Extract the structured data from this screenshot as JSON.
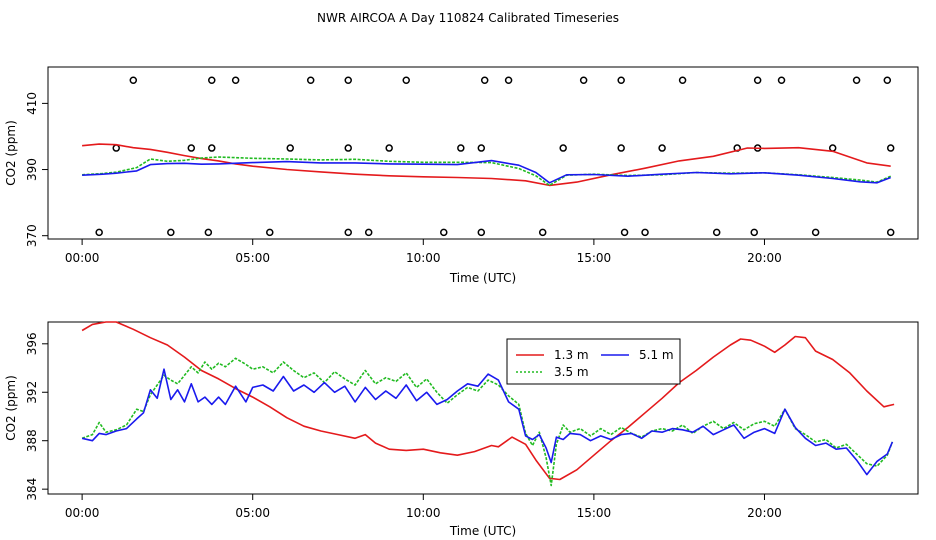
{
  "title": "NWR AIRCOA A  Day 110824  Calibrated Timeseries",
  "colors": {
    "s13": "#e41a1c",
    "s35": "#22bb22",
    "s51": "#1a1aee"
  },
  "chart_data": [
    {
      "type": "line",
      "xlabel": "Time (UTC)",
      "ylabel": "CO2 (ppm)",
      "xlim": [
        -1.0,
        24.5
      ],
      "ylim": [
        369,
        421
      ],
      "xticks": [
        0,
        5,
        10,
        15,
        20
      ],
      "xtick_labels": [
        "00:00",
        "05:00",
        "10:00",
        "15:00",
        "20:00"
      ],
      "yticks": [
        370,
        390,
        410
      ],
      "ytick_labels": [
        "370",
        "390",
        "410"
      ],
      "grid": false,
      "series": [
        {
          "name": "1.3 m",
          "color": "#e41a1c",
          "style": "solid",
          "x": [
            0,
            0.5,
            1,
            1.5,
            2,
            2.5,
            3,
            3.5,
            4,
            4.5,
            5,
            6,
            7,
            8,
            9,
            10,
            11,
            12,
            13,
            13.7,
            14.5,
            15.5,
            16.5,
            17.5,
            18.5,
            19.5,
            20,
            21,
            22,
            23,
            23.7
          ],
          "y": [
            397.2,
            397.7,
            397.5,
            396.6,
            396.1,
            395.2,
            394.2,
            393.3,
            392.6,
            391.7,
            391.0,
            390.0,
            389.3,
            388.6,
            388.1,
            387.8,
            387.6,
            387.3,
            386.6,
            385.2,
            386.2,
            388.4,
            390.4,
            392.6,
            394.0,
            396.5,
            396.4,
            396.6,
            395.5,
            392.0,
            391.0
          ]
        },
        {
          "name": "3.5 m",
          "color": "#22bb22",
          "style": "dotted",
          "x": [
            0,
            0.6,
            1,
            1.6,
            2,
            2.5,
            3,
            3.5,
            4,
            5,
            6,
            7,
            8,
            9,
            10,
            11,
            12,
            12.8,
            13.3,
            13.7,
            14.2,
            15,
            16,
            17,
            18,
            19,
            20,
            21,
            22,
            22.8,
            23.3,
            23.7
          ],
          "y": [
            388.4,
            388.8,
            389.2,
            390.6,
            393.2,
            392.5,
            392.8,
            393.5,
            393.8,
            393.4,
            393.2,
            392.9,
            393.1,
            392.5,
            392.2,
            392.2,
            392.1,
            390.3,
            388.1,
            385.2,
            388.3,
            388.6,
            388.2,
            388.4,
            389.1,
            388.9,
            389.0,
            388.4,
            387.6,
            386.8,
            386.2,
            388.0
          ]
        },
        {
          "name": "5.1 m",
          "color": "#1a1aee",
          "style": "solid",
          "x": [
            0,
            0.6,
            1,
            1.6,
            2,
            2.5,
            3,
            3.5,
            4,
            5,
            6,
            7,
            8,
            9,
            10,
            11,
            12,
            12.8,
            13.3,
            13.7,
            14.2,
            15,
            16,
            17,
            18,
            19,
            20,
            21,
            22,
            22.8,
            23.3,
            23.7
          ],
          "y": [
            388.3,
            388.6,
            388.9,
            389.6,
            391.5,
            391.8,
            391.9,
            391.6,
            391.7,
            392.1,
            392.4,
            392.0,
            392.0,
            391.7,
            391.6,
            391.5,
            392.7,
            391.3,
            389.1,
            386.0,
            388.4,
            388.5,
            388.0,
            388.6,
            389.1,
            388.7,
            389.0,
            388.3,
            387.3,
            386.3,
            386.0,
            387.6
          ]
        }
      ],
      "flags": {
        "top": {
          "y": 417,
          "x": [
            1.5,
            3.8,
            4.5,
            6.7,
            7.8,
            9.5,
            11.8,
            12.5,
            14.7,
            15.8,
            17.6,
            19.8,
            20.5,
            22.7,
            23.6
          ]
        },
        "middle": {
          "y": 396.5,
          "x": [
            1.0,
            3.2,
            3.8,
            6.1,
            7.8,
            9.0,
            11.1,
            11.7,
            14.1,
            15.8,
            17.0,
            19.2,
            19.8,
            22.0,
            23.7
          ]
        },
        "bottom": {
          "y": 371,
          "x": [
            0.5,
            2.6,
            3.7,
            5.5,
            7.8,
            8.4,
            10.6,
            11.7,
            13.5,
            15.9,
            16.5,
            18.6,
            19.7,
            21.5,
            23.7
          ]
        }
      }
    },
    {
      "type": "line",
      "xlabel": "Time (UTC)",
      "ylabel": "CO2 (ppm)",
      "xlim": [
        -1.0,
        24.5
      ],
      "ylim": [
        383.6,
        397.8
      ],
      "xticks": [
        0,
        5,
        10,
        15,
        20
      ],
      "xtick_labels": [
        "00:00",
        "05:00",
        "10:00",
        "15:00",
        "20:00"
      ],
      "yticks": [
        384,
        388,
        392,
        396
      ],
      "ytick_labels": [
        "384",
        "388",
        "392",
        "396"
      ],
      "grid": false,
      "legend": {
        "placement": "top-center",
        "entries": [
          "1.3 m",
          "5.1 m",
          "3.5 m"
        ]
      },
      "series": [
        {
          "name": "1.3 m",
          "color": "#e41a1c",
          "style": "solid",
          "x": [
            0,
            0.3,
            0.7,
            1.0,
            1.5,
            2.0,
            2.5,
            3.0,
            3.5,
            4.0,
            4.5,
            5.0,
            5.5,
            6.0,
            6.5,
            7.0,
            7.5,
            8.0,
            8.3,
            8.6,
            9.0,
            9.5,
            10.0,
            10.5,
            11.0,
            11.5,
            12.0,
            12.2,
            12.6,
            13.0,
            13.3,
            13.7,
            14.0,
            14.5,
            15.0,
            15.5,
            16.0,
            16.5,
            17.0,
            17.5,
            18.0,
            18.5,
            19.0,
            19.3,
            19.6,
            20.0,
            20.3,
            20.6,
            20.9,
            21.2,
            21.5,
            22.0,
            22.5,
            23.0,
            23.5,
            23.8
          ],
          "y": [
            397.1,
            397.6,
            397.8,
            397.8,
            397.2,
            396.5,
            395.9,
            394.9,
            393.8,
            393.1,
            392.3,
            391.6,
            390.8,
            389.9,
            389.2,
            388.8,
            388.5,
            388.2,
            388.5,
            387.8,
            387.3,
            387.2,
            387.3,
            387.0,
            386.8,
            387.1,
            387.6,
            387.5,
            388.3,
            387.7,
            386.4,
            384.9,
            384.8,
            385.6,
            386.8,
            388.0,
            389.1,
            390.3,
            391.5,
            392.8,
            393.8,
            394.9,
            395.9,
            396.4,
            396.3,
            395.8,
            395.3,
            395.9,
            396.6,
            396.5,
            395.4,
            394.7,
            393.6,
            392.1,
            390.8,
            391.0
          ]
        },
        {
          "name": "3.5 m",
          "color": "#22bb22",
          "style": "dotted",
          "x": [
            0,
            0.3,
            0.5,
            0.7,
            1.0,
            1.3,
            1.6,
            1.8,
            2.0,
            2.2,
            2.4,
            2.6,
            2.8,
            3.0,
            3.2,
            3.4,
            3.6,
            3.8,
            4.0,
            4.2,
            4.5,
            4.8,
            5.0,
            5.3,
            5.6,
            5.9,
            6.2,
            6.5,
            6.8,
            7.1,
            7.4,
            7.7,
            8.0,
            8.3,
            8.6,
            8.9,
            9.2,
            9.5,
            9.8,
            10.1,
            10.4,
            10.7,
            11.0,
            11.3,
            11.6,
            11.9,
            12.2,
            12.5,
            12.8,
            13.0,
            13.2,
            13.4,
            13.6,
            13.75,
            13.9,
            14.1,
            14.3,
            14.6,
            14.9,
            15.2,
            15.5,
            15.8,
            16.1,
            16.4,
            16.7,
            17.0,
            17.3,
            17.6,
            17.9,
            18.2,
            18.5,
            18.8,
            19.1,
            19.4,
            19.7,
            20.0,
            20.3,
            20.6,
            20.9,
            21.2,
            21.5,
            21.8,
            22.1,
            22.4,
            22.7,
            23.0,
            23.3,
            23.6,
            23.75
          ],
          "y": [
            388.2,
            388.5,
            389.5,
            388.7,
            388.9,
            389.3,
            390.6,
            390.4,
            391.8,
            392.6,
            393.4,
            393.0,
            392.7,
            393.4,
            394.1,
            393.6,
            394.5,
            393.9,
            394.4,
            394.1,
            394.8,
            394.3,
            393.9,
            394.1,
            393.6,
            394.5,
            393.8,
            393.2,
            393.6,
            392.8,
            393.7,
            393.1,
            392.6,
            393.8,
            392.7,
            393.2,
            392.9,
            393.6,
            392.4,
            393.1,
            392.0,
            391.1,
            391.8,
            392.4,
            392.1,
            393.0,
            392.6,
            391.7,
            391.0,
            388.6,
            387.6,
            388.7,
            386.6,
            384.3,
            387.7,
            389.3,
            388.7,
            389.0,
            388.4,
            389.0,
            388.5,
            389.1,
            388.6,
            388.3,
            388.8,
            389.0,
            388.8,
            389.3,
            388.6,
            389.2,
            389.6,
            389.0,
            389.5,
            388.9,
            389.4,
            389.6,
            389.2,
            390.6,
            389.0,
            388.5,
            387.9,
            388.1,
            387.4,
            387.7,
            386.9,
            386.1,
            385.9,
            386.8,
            387.9
          ]
        },
        {
          "name": "5.1 m",
          "color": "#1a1aee",
          "style": "solid",
          "x": [
            0,
            0.3,
            0.5,
            0.7,
            1.0,
            1.3,
            1.6,
            1.8,
            2.0,
            2.2,
            2.4,
            2.6,
            2.8,
            3.0,
            3.2,
            3.4,
            3.6,
            3.8,
            4.0,
            4.2,
            4.5,
            4.8,
            5.0,
            5.3,
            5.6,
            5.9,
            6.2,
            6.5,
            6.8,
            7.1,
            7.4,
            7.7,
            8.0,
            8.3,
            8.6,
            8.9,
            9.2,
            9.5,
            9.8,
            10.1,
            10.4,
            10.7,
            11.0,
            11.3,
            11.6,
            11.9,
            12.2,
            12.5,
            12.8,
            13.0,
            13.2,
            13.4,
            13.6,
            13.75,
            13.9,
            14.1,
            14.3,
            14.6,
            14.9,
            15.2,
            15.5,
            15.8,
            16.1,
            16.4,
            16.7,
            17.0,
            17.3,
            17.6,
            17.9,
            18.2,
            18.5,
            18.8,
            19.1,
            19.4,
            19.7,
            20.0,
            20.3,
            20.6,
            20.9,
            21.2,
            21.5,
            21.8,
            22.1,
            22.4,
            22.7,
            23.0,
            23.3,
            23.6,
            23.75
          ],
          "y": [
            388.2,
            388.0,
            388.6,
            388.5,
            388.8,
            389.0,
            389.8,
            390.3,
            392.2,
            391.5,
            393.9,
            391.4,
            392.2,
            391.2,
            392.7,
            391.2,
            391.6,
            391.0,
            391.6,
            391.0,
            392.5,
            391.2,
            392.4,
            392.6,
            392.1,
            393.3,
            392.1,
            392.6,
            392.0,
            392.8,
            392.0,
            392.5,
            391.2,
            392.4,
            391.4,
            392.1,
            391.5,
            392.6,
            391.3,
            392.0,
            391.0,
            391.4,
            392.1,
            392.7,
            392.5,
            393.5,
            393.0,
            391.2,
            390.6,
            388.4,
            388.1,
            388.5,
            387.4,
            386.2,
            388.3,
            388.1,
            388.6,
            388.5,
            388.0,
            388.4,
            388.1,
            388.5,
            388.6,
            388.2,
            388.8,
            388.7,
            389.0,
            388.9,
            388.7,
            389.2,
            388.5,
            388.9,
            389.3,
            388.2,
            388.7,
            389.0,
            388.6,
            390.6,
            389.1,
            388.2,
            387.6,
            387.8,
            387.3,
            387.4,
            386.4,
            385.2,
            386.3,
            386.9,
            387.9
          ]
        }
      ]
    }
  ]
}
